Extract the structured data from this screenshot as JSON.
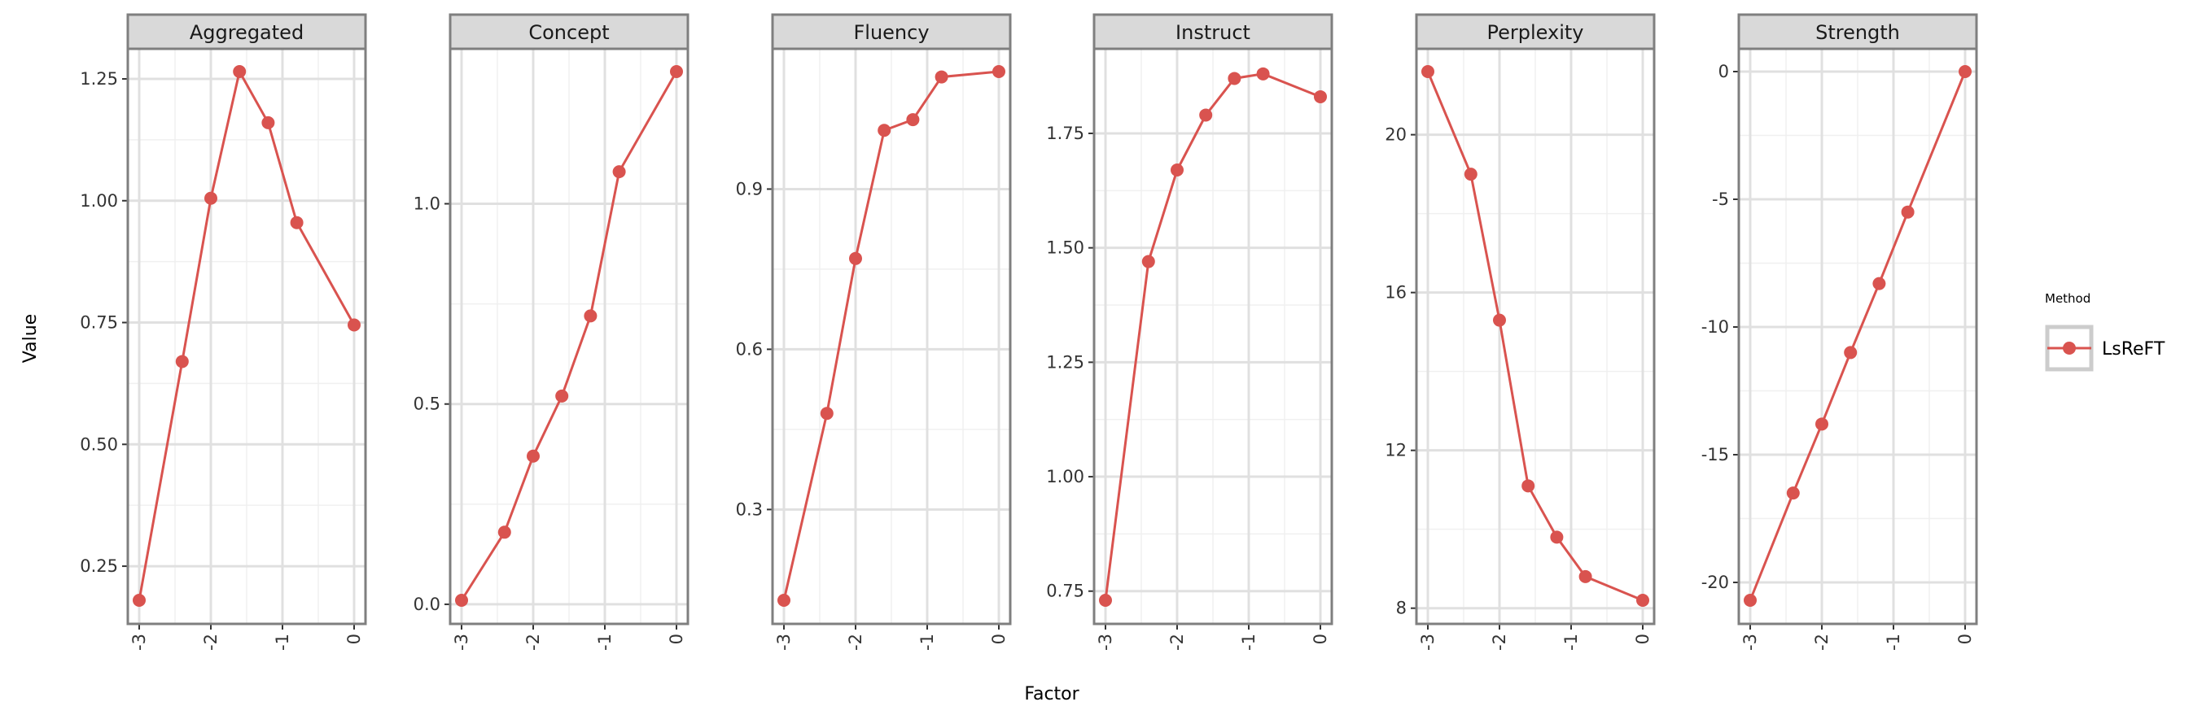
{
  "chart_data": {
    "type": "line",
    "facet": "small-multiples",
    "xlabel": "Factor",
    "ylabel": "Value",
    "x_ticks": [
      "-3",
      "-2",
      "-1",
      "0"
    ],
    "x_tick_values": [
      -3,
      -2,
      -1,
      0
    ],
    "xlim": [
      -3,
      0
    ],
    "legend": {
      "title": "Method",
      "position": "right",
      "entries": [
        "LsReFT"
      ]
    },
    "series_color": "#d9534f",
    "grid": true,
    "panels": [
      {
        "title": "Aggregated",
        "ylim": [
          0.18,
          1.265
        ],
        "y_ticks": [
          0.25,
          0.5,
          0.75,
          1.0,
          1.25
        ],
        "y_tick_labels": [
          "0.25",
          "0.50",
          "0.75",
          "1.00",
          "1.25"
        ],
        "series": [
          {
            "name": "LsReFT",
            "x": [
              -3,
              -2.4,
              -2,
              -1.6,
              -1.2,
              -0.8,
              0
            ],
            "y": [
              0.18,
              0.67,
              1.005,
              1.265,
              1.16,
              0.955,
              0.745
            ]
          }
        ]
      },
      {
        "title": "Concept",
        "ylim": [
          0.01,
          1.33
        ],
        "y_ticks": [
          0.0,
          0.5,
          1.0
        ],
        "y_tick_labels": [
          "0.0",
          "0.5",
          "1.0"
        ],
        "series": [
          {
            "name": "LsReFT",
            "x": [
              -3,
              -2.4,
              -2,
              -1.6,
              -1.2,
              -0.8,
              0
            ],
            "y": [
              0.01,
              0.18,
              0.37,
              0.52,
              0.72,
              1.08,
              1.33
            ]
          }
        ]
      },
      {
        "title": "Fluency",
        "ylim": [
          0.13,
          1.12
        ],
        "y_ticks": [
          0.3,
          0.6,
          0.9
        ],
        "y_tick_labels": [
          "0.3",
          "0.6",
          "0.9"
        ],
        "series": [
          {
            "name": "LsReFT",
            "x": [
              -3,
              -2.4,
              -2,
              -1.6,
              -1.2,
              -0.8,
              0
            ],
            "y": [
              0.13,
              0.48,
              0.77,
              1.01,
              1.03,
              1.11,
              1.12
            ]
          }
        ]
      },
      {
        "title": "Instruct",
        "ylim": [
          0.73,
          1.885
        ],
        "y_ticks": [
          0.75,
          1.0,
          1.25,
          1.5,
          1.75
        ],
        "y_tick_labels": [
          "0.75",
          "1.00",
          "1.25",
          "1.50",
          "1.75"
        ],
        "series": [
          {
            "name": "LsReFT",
            "x": [
              -3,
              -2.4,
              -2,
              -1.6,
              -1.2,
              -0.8,
              0
            ],
            "y": [
              0.73,
              1.47,
              1.67,
              1.79,
              1.87,
              1.88,
              1.83
            ]
          }
        ]
      },
      {
        "title": "Perplexity",
        "ylim": [
          8.2,
          21.6
        ],
        "y_ticks": [
          8,
          12,
          16,
          20
        ],
        "y_tick_labels": [
          "8",
          "12",
          "16",
          "20"
        ],
        "series": [
          {
            "name": "LsReFT",
            "x": [
              -3,
              -2.4,
              -2,
              -1.6,
              -1.2,
              -0.8,
              0
            ],
            "y": [
              21.6,
              19.0,
              15.3,
              11.1,
              9.8,
              8.8,
              8.2
            ]
          }
        ]
      },
      {
        "title": "Strength",
        "ylim": [
          -20.7,
          0
        ],
        "y_ticks": [
          0,
          -5,
          -10,
          -15,
          -20
        ],
        "y_tick_labels": [
          "0",
          "-5",
          "-10",
          "-15",
          "-20"
        ],
        "series": [
          {
            "name": "LsReFT",
            "x": [
              -3,
              -2.4,
              -2,
              -1.6,
              -1.2,
              -0.8,
              0
            ],
            "y": [
              -20.7,
              -16.5,
              -13.8,
              -11.0,
              -8.3,
              -5.5,
              0
            ]
          }
        ]
      }
    ]
  }
}
